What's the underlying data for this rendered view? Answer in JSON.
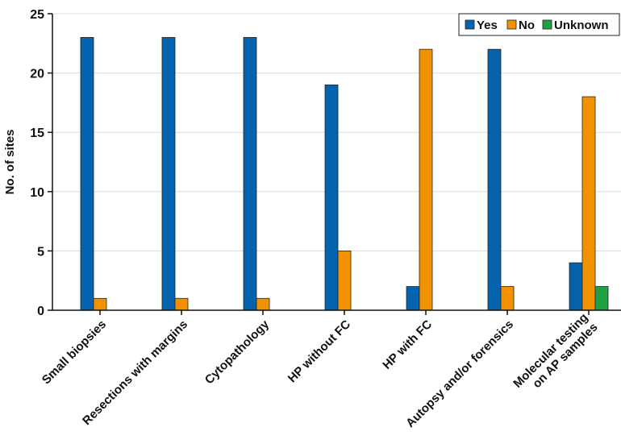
{
  "chart_data": {
    "type": "bar",
    "title": "",
    "xlabel": "",
    "ylabel": "No. of sites",
    "ylim": [
      0,
      25
    ],
    "yticks": [
      0,
      5,
      10,
      15,
      20,
      25
    ],
    "grid": true,
    "legend_position": "top-right",
    "categories": [
      "Small biopsies",
      "Resections with margins",
      "Cytopathology",
      "HP without FC",
      "HP with FC",
      "Autopsy and/or forensics",
      "Molecular testing\non AP samples"
    ],
    "series": [
      {
        "name": "Yes",
        "color": "#0563ae",
        "values": [
          23,
          23,
          23,
          19,
          2,
          22,
          4
        ]
      },
      {
        "name": "No",
        "color": "#f39200",
        "values": [
          1,
          1,
          1,
          5,
          22,
          2,
          18
        ]
      },
      {
        "name": "Unknown",
        "color": "#1fa043",
        "values": [
          0,
          0,
          0,
          0,
          0,
          0,
          2
        ]
      }
    ]
  }
}
